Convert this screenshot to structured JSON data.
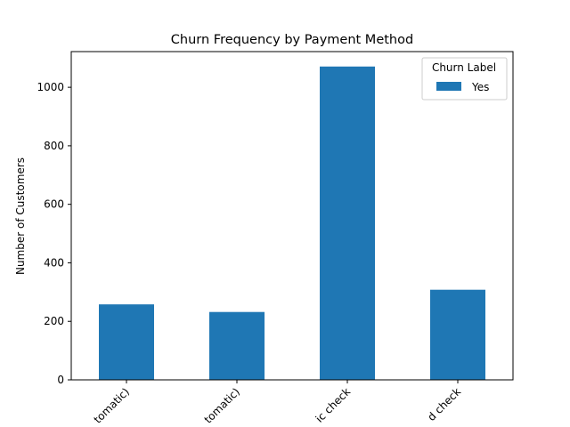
{
  "chart_data": {
    "type": "bar",
    "title": "Churn Frequency by Payment Method",
    "xlabel": "",
    "ylabel": "Number of Customers",
    "tick_labels_visible": [
      "tomatic)",
      "tomatic)",
      "ic check",
      "d check"
    ],
    "series": [
      {
        "name": "Yes",
        "values": [
          258,
          232,
          1071,
          308
        ],
        "color": "#1f77b4"
      }
    ],
    "ylim": [
      0,
      1122
    ],
    "yticks": [
      0,
      200,
      400,
      600,
      800,
      1000
    ],
    "legend": {
      "title": "Churn Label",
      "position": "top-right"
    },
    "grid": false
  }
}
